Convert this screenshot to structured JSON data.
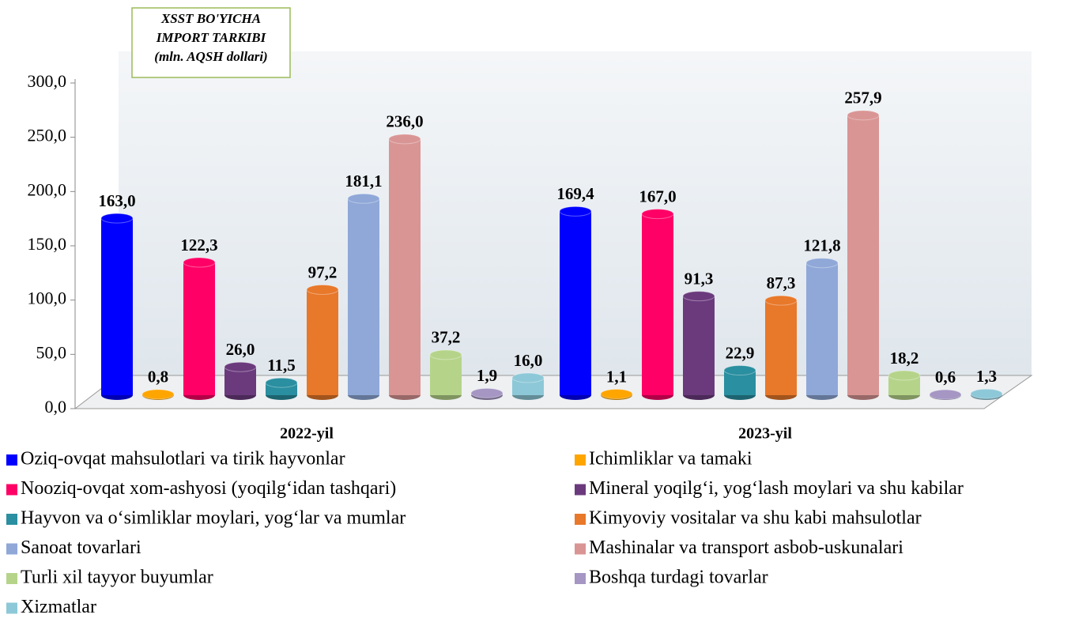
{
  "chart_data": {
    "type": "bar3d",
    "title": [
      "XSST BO'YICHA",
      "IMPORT TARKIBI",
      "(mln. AQSH dollari)"
    ],
    "categories": [
      "2022-yil",
      "2023-yil"
    ],
    "ylim": [
      0,
      300
    ],
    "yticks": [
      {
        "value": 0,
        "label": "0,0"
      },
      {
        "value": 50,
        "label": "50,0"
      },
      {
        "value": 100,
        "label": "100,0"
      },
      {
        "value": 150,
        "label": "150,0"
      },
      {
        "value": 200,
        "label": "200,0"
      },
      {
        "value": 250,
        "label": "250,0"
      },
      {
        "value": 300,
        "label": "300,0"
      }
    ],
    "series": [
      {
        "name": "Oziq-ovqat mahsulotlari va tirik hayvonlar",
        "color": "#0000ff",
        "values": [
          163.0,
          169.4
        ],
        "value_labels": [
          "163,0",
          "169,4"
        ]
      },
      {
        "name": "Ichimliklar va tamaki",
        "color": "#ffa500",
        "values": [
          0.8,
          1.1
        ],
        "value_labels": [
          "0,8",
          "1,1"
        ]
      },
      {
        "name": "Nooziq-ovqat xom-ashyosi (yoqilg‘idan tashqari)",
        "color": "#ff0066",
        "values": [
          122.3,
          167.0
        ],
        "value_labels": [
          "122,3",
          "167,0"
        ]
      },
      {
        "name": "Mineral yoqilg‘i, yog‘lash moylari va shu kabilar",
        "color": "#6b3a7d",
        "values": [
          26.0,
          91.3
        ],
        "value_labels": [
          "26,0",
          "91,3"
        ]
      },
      {
        "name": "Hayvon va o‘simliklar moylari, yog‘lar va mumlar",
        "color": "#2a8fa0",
        "values": [
          11.5,
          22.9
        ],
        "value_labels": [
          "11,5",
          "22,9"
        ]
      },
      {
        "name": "Kimyoviy vositalar va shu kabi mahsulotlar",
        "color": "#e8782a",
        "values": [
          97.2,
          87.3
        ],
        "value_labels": [
          "97,2",
          "87,3"
        ]
      },
      {
        "name": "Sanoat tovarlari",
        "color": "#8fa8d8",
        "values": [
          181.1,
          121.8
        ],
        "value_labels": [
          "181,1",
          "121,8"
        ]
      },
      {
        "name": "Mashinalar va transport asbob-uskunalari",
        "color": "#d99594",
        "values": [
          236.0,
          257.9
        ],
        "value_labels": [
          "236,0",
          "257,9"
        ]
      },
      {
        "name": "Turli xil tayyor buyumlar",
        "color": "#b5d48a",
        "values": [
          37.2,
          18.2
        ],
        "value_labels": [
          "37,2",
          "18,2"
        ]
      },
      {
        "name": "Boshqa turdagi tovarlar",
        "color": "#a596c4",
        "values": [
          1.9,
          0.6
        ],
        "value_labels": [
          "1,9",
          "0,6"
        ]
      },
      {
        "name": "Xizmatlar",
        "color": "#8dc8d8",
        "values": [
          16.0,
          1.3
        ],
        "value_labels": [
          "16,0",
          "1,3"
        ]
      }
    ]
  }
}
